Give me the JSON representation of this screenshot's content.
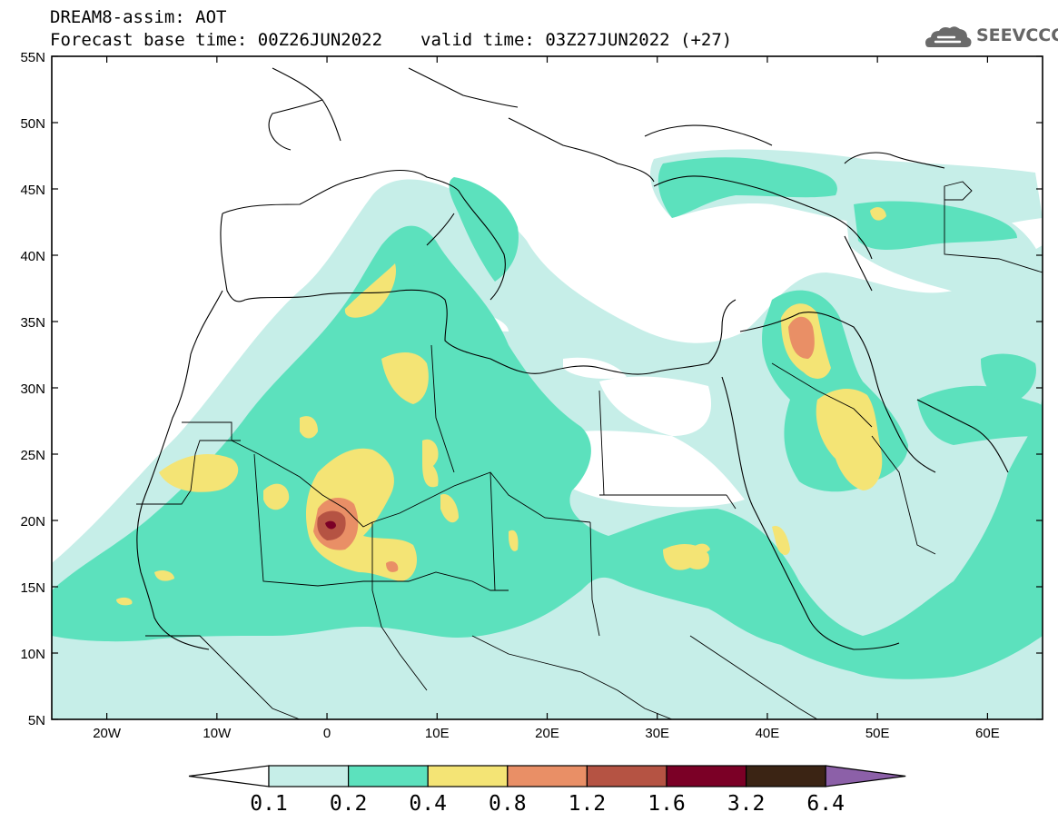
{
  "header": {
    "line1": "DREAM8-assim: AOT",
    "base_time": "Forecast base time: 00Z26JUN2022",
    "valid_time": "valid time: 03Z27JUN2022 (+27)"
  },
  "logo": {
    "text": "SEEVCCC",
    "icon": "cloud-icon"
  },
  "map": {
    "lat_labels": [
      "55N",
      "50N",
      "45N",
      "40N",
      "35N",
      "30N",
      "25N",
      "20N",
      "15N",
      "10N",
      "5N"
    ],
    "lon_labels": [
      "20W",
      "10W",
      "0",
      "10E",
      "20E",
      "30E",
      "40E",
      "50E",
      "60E"
    ],
    "extent": {
      "lon_min": -25,
      "lon_max": 65,
      "lat_min": 5,
      "lat_max": 55
    }
  },
  "colorbar": {
    "levels": [
      "0.1",
      "0.2",
      "0.4",
      "0.8",
      "1.2",
      "1.6",
      "3.2",
      "6.4"
    ],
    "colors": [
      "#ffffff",
      "#c6eee8",
      "#5ce1bd",
      "#f4e475",
      "#e98f66",
      "#b55343",
      "#7b0026",
      "#3b2414",
      "#8c60a8"
    ]
  },
  "colors": {
    "c1": "#c6eee8",
    "c2": "#5ce1bd",
    "c3": "#f4e475",
    "c4": "#e98f66",
    "c5": "#b55343",
    "c6": "#7b0026"
  }
}
